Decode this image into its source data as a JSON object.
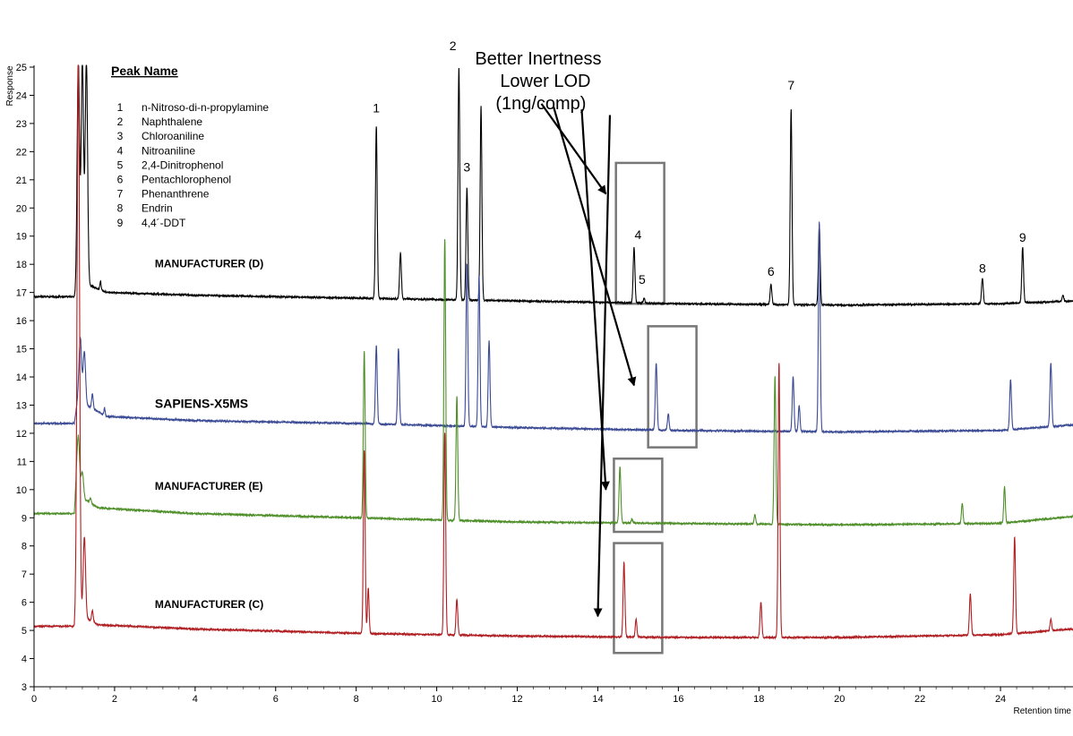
{
  "chart_data": {
    "type": "line",
    "title": "",
    "xlabel": "Retention time",
    "ylabel": "Response",
    "xlim": [
      0,
      25.8
    ],
    "ylim": [
      3,
      25
    ],
    "x_ticks": [
      0,
      2,
      4,
      6,
      8,
      10,
      12,
      14,
      16,
      18,
      20,
      22,
      24
    ],
    "y_ticks": [
      3,
      4,
      5,
      6,
      7,
      8,
      9,
      10,
      11,
      12,
      13,
      14,
      15,
      16,
      17,
      18,
      19,
      20,
      21,
      22,
      23,
      24,
      25
    ],
    "legend": {
      "title": "Peak Name",
      "placement": "top-left",
      "entries": [
        {
          "num": "1",
          "name": "n-Nitroso-di-n-propylamine"
        },
        {
          "num": "2",
          "name": "Naphthalene"
        },
        {
          "num": "3",
          "name": "Chloroaniline"
        },
        {
          "num": "4",
          "name": "Nitroaniline"
        },
        {
          "num": "5",
          "name": "2,4-Dinitrophenol"
        },
        {
          "num": "6",
          "name": "Pentachlorophenol"
        },
        {
          "num": "7",
          "name": "Phenanthrene"
        },
        {
          "num": "8",
          "name": "Endrin"
        },
        {
          "num": "9",
          "name": "4,4´-DDT"
        }
      ]
    },
    "annotation": {
      "lines": [
        "Better Inertness",
        "Lower LOD",
        "(1ng/comp)"
      ],
      "anchor": [
        10.95,
        25.1
      ],
      "arrow_origins": [
        [
          12.6,
          23.7
        ],
        [
          12.9,
          23.6
        ],
        [
          13.6,
          23.5
        ],
        [
          14.3,
          23.3
        ]
      ],
      "arrow_targets": [
        [
          14.2,
          20.5
        ],
        [
          14.9,
          13.7
        ],
        [
          14.2,
          10.0
        ],
        [
          14.0,
          5.5
        ]
      ]
    },
    "highlight_boxes": [
      {
        "x": [
          14.45,
          15.65
        ],
        "y": [
          16.6,
          21.6
        ]
      },
      {
        "x": [
          15.25,
          16.45
        ],
        "y": [
          11.5,
          15.8
        ]
      },
      {
        "x": [
          14.4,
          15.6
        ],
        "y": [
          8.5,
          11.1
        ]
      },
      {
        "x": [
          14.4,
          15.6
        ],
        "y": [
          4.2,
          8.1
        ]
      }
    ],
    "series": [
      {
        "name": "MANUFACTURER (D)",
        "color": "#000000",
        "label_pos": [
          3.0,
          17.9
        ],
        "label_size": 12,
        "baseline": [
          [
            0,
            16.85
          ],
          [
            1.0,
            16.85
          ],
          [
            1.05,
            17.0
          ],
          [
            1.3,
            17.3
          ],
          [
            1.8,
            17.0
          ],
          [
            4,
            16.9
          ],
          [
            8,
            16.8
          ],
          [
            12,
            16.7
          ],
          [
            16,
            16.6
          ],
          [
            20,
            16.55
          ],
          [
            24,
            16.6
          ],
          [
            25.8,
            16.7
          ]
        ],
        "peaks": [
          [
            1.1,
            25.2,
            0.03
          ],
          [
            1.2,
            25.2,
            0.03
          ],
          [
            1.3,
            25.2,
            0.03
          ],
          [
            1.65,
            17.4,
            0.015
          ],
          [
            8.5,
            22.9,
            0.022
          ],
          [
            9.1,
            18.4,
            0.022
          ],
          [
            10.55,
            25.0,
            0.022
          ],
          [
            10.75,
            20.7,
            0.022
          ],
          [
            11.1,
            23.6,
            0.022
          ],
          [
            14.9,
            18.6,
            0.022
          ],
          [
            15.15,
            16.8,
            0.02
          ],
          [
            18.3,
            17.3,
            0.022
          ],
          [
            18.8,
            23.5,
            0.022
          ],
          [
            19.5,
            19.4,
            0.022
          ],
          [
            23.55,
            17.5,
            0.022
          ],
          [
            24.55,
            18.6,
            0.022
          ],
          [
            25.55,
            16.9,
            0.02
          ]
        ],
        "peak_labels": [
          {
            "text": "1",
            "x": 8.5,
            "y": 23.4
          },
          {
            "text": "2",
            "x": 10.4,
            "y": 25.6
          },
          {
            "text": "3",
            "x": 10.75,
            "y": 21.3
          },
          {
            "text": "4",
            "x": 15.0,
            "y": 18.9
          },
          {
            "text": "5",
            "x": 15.1,
            "y": 17.3
          },
          {
            "text": "6",
            "x": 18.3,
            "y": 17.6
          },
          {
            "text": "7",
            "x": 18.8,
            "y": 24.2
          },
          {
            "text": "8",
            "x": 23.55,
            "y": 17.7
          },
          {
            "text": "9",
            "x": 24.55,
            "y": 18.8
          }
        ]
      },
      {
        "name": "SAPIENS-X5MS",
        "color": "#3b4a94",
        "label_pos": [
          3.0,
          12.9
        ],
        "label_size": 14,
        "baseline": [
          [
            0,
            12.35
          ],
          [
            1.0,
            12.35
          ],
          [
            1.1,
            13.4
          ],
          [
            1.3,
            13.0
          ],
          [
            1.8,
            12.6
          ],
          [
            4,
            12.45
          ],
          [
            8,
            12.35
          ],
          [
            12,
            12.2
          ],
          [
            16,
            12.1
          ],
          [
            20,
            12.05
          ],
          [
            24,
            12.1
          ],
          [
            25.8,
            12.3
          ]
        ],
        "peaks": [
          [
            1.15,
            15.4,
            0.03
          ],
          [
            1.25,
            14.9,
            0.03
          ],
          [
            1.45,
            13.4,
            0.02
          ],
          [
            1.75,
            12.9,
            0.015
          ],
          [
            8.5,
            15.1,
            0.022
          ],
          [
            9.05,
            15.0,
            0.022
          ],
          [
            10.75,
            18.0,
            0.022
          ],
          [
            11.05,
            17.6,
            0.022
          ],
          [
            11.3,
            15.3,
            0.022
          ],
          [
            15.45,
            14.5,
            0.022
          ],
          [
            15.75,
            12.7,
            0.02
          ],
          [
            18.85,
            14.0,
            0.022
          ],
          [
            19.0,
            13.0,
            0.02
          ],
          [
            19.5,
            19.5,
            0.022
          ],
          [
            24.25,
            13.9,
            0.022
          ],
          [
            25.25,
            14.5,
            0.022
          ]
        ]
      },
      {
        "name": "MANUFACTURER (E)",
        "color": "#4f8f2a",
        "label_pos": [
          3.0,
          10.0
        ],
        "label_size": 12,
        "baseline": [
          [
            0,
            9.15
          ],
          [
            1.0,
            9.15
          ],
          [
            1.05,
            10.4
          ],
          [
            1.2,
            9.7
          ],
          [
            1.6,
            9.35
          ],
          [
            4,
            9.15
          ],
          [
            8,
            9.0
          ],
          [
            12,
            8.85
          ],
          [
            16,
            8.8
          ],
          [
            20,
            8.75
          ],
          [
            24,
            8.8
          ],
          [
            25.8,
            9.05
          ]
        ],
        "peaks": [
          [
            1.1,
            11.9,
            0.03
          ],
          [
            1.2,
            10.6,
            0.03
          ],
          [
            1.4,
            9.7,
            0.02
          ],
          [
            8.2,
            14.9,
            0.022
          ],
          [
            10.2,
            18.9,
            0.022
          ],
          [
            10.5,
            13.3,
            0.022
          ],
          [
            14.55,
            10.8,
            0.022
          ],
          [
            14.85,
            8.95,
            0.02
          ],
          [
            17.9,
            9.1,
            0.02
          ],
          [
            18.4,
            14.0,
            0.022
          ],
          [
            23.05,
            9.5,
            0.02
          ],
          [
            24.1,
            10.1,
            0.02
          ],
          [
            25.0,
            8.95,
            0.02
          ]
        ]
      },
      {
        "name": "MANUFACTURER (C)",
        "color": "#b01e22",
        "label_pos": [
          3.0,
          5.8
        ],
        "label_size": 12,
        "baseline": [
          [
            0,
            5.15
          ],
          [
            1.0,
            5.15
          ],
          [
            1.05,
            6.2
          ],
          [
            1.2,
            5.5
          ],
          [
            1.6,
            5.2
          ],
          [
            4,
            5.05
          ],
          [
            8,
            4.9
          ],
          [
            12,
            4.8
          ],
          [
            16,
            4.75
          ],
          [
            20,
            4.75
          ],
          [
            24,
            4.85
          ],
          [
            25.8,
            5.05
          ]
        ],
        "peaks": [
          [
            1.1,
            25.2,
            0.03
          ],
          [
            1.25,
            8.3,
            0.03
          ],
          [
            1.45,
            5.7,
            0.02
          ],
          [
            8.2,
            11.4,
            0.022
          ],
          [
            8.3,
            6.5,
            0.02
          ],
          [
            10.2,
            12.0,
            0.022
          ],
          [
            10.5,
            6.1,
            0.022
          ],
          [
            14.65,
            7.4,
            0.022
          ],
          [
            14.95,
            5.4,
            0.02
          ],
          [
            18.05,
            6.0,
            0.022
          ],
          [
            18.5,
            14.5,
            0.022
          ],
          [
            23.25,
            6.3,
            0.022
          ],
          [
            24.35,
            8.3,
            0.022
          ],
          [
            25.25,
            5.4,
            0.02
          ]
        ]
      }
    ]
  }
}
